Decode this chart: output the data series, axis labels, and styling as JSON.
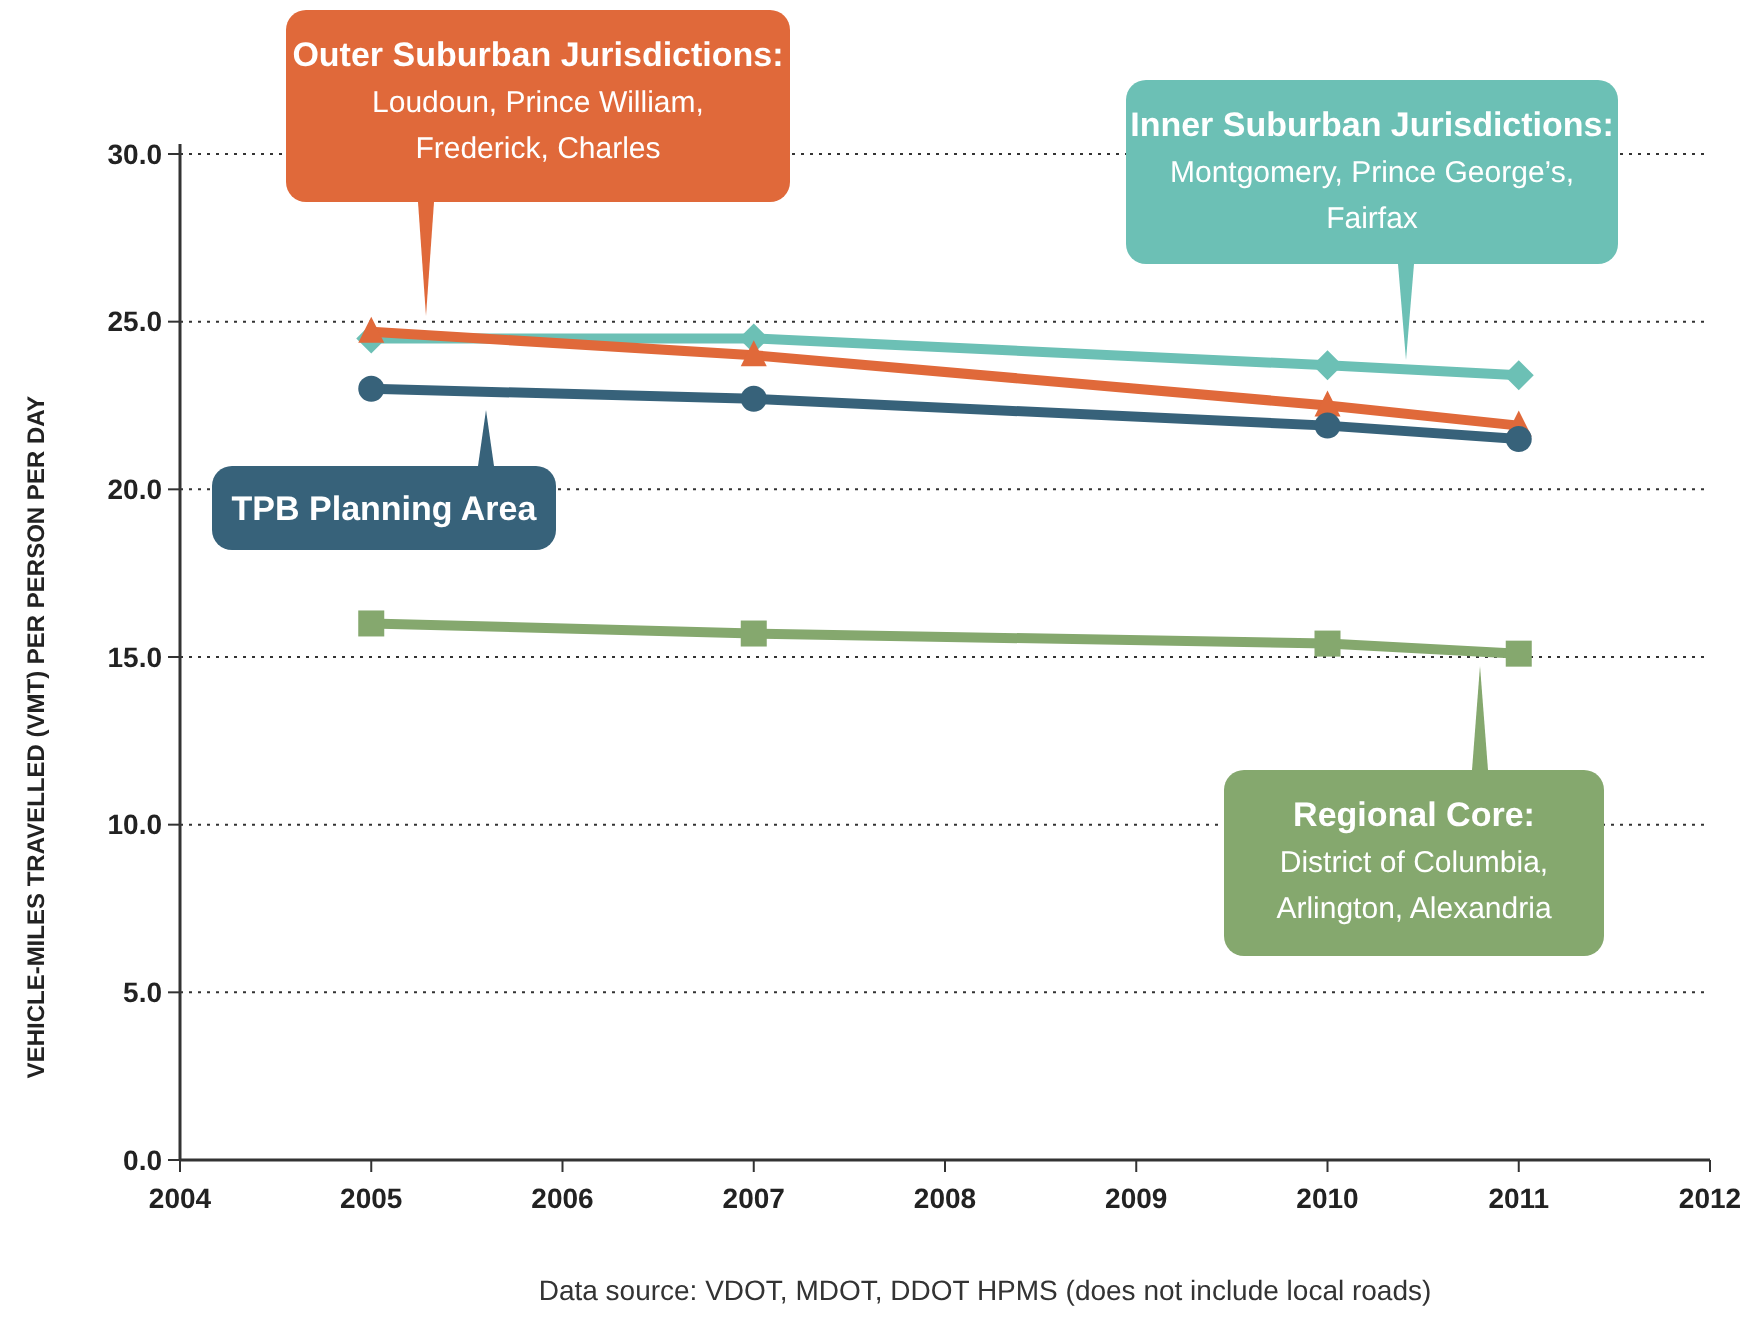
{
  "chart_data": {
    "type": "line",
    "ylabel": "VEHICLE-MILES TRAVELLED (VMT) PER PERSON PER DAY",
    "xlim": [
      2004,
      2012
    ],
    "xticks": [
      2004,
      2005,
      2006,
      2007,
      2008,
      2009,
      2010,
      2011,
      2012
    ],
    "ylim": [
      0,
      30
    ],
    "yticks": [
      {
        "value": 0,
        "label": "0.0"
      },
      {
        "value": 5,
        "label": "5.0"
      },
      {
        "value": 10,
        "label": "10.0"
      },
      {
        "value": 15,
        "label": "15.0"
      },
      {
        "value": 20,
        "label": "20.0"
      },
      {
        "value": 25,
        "label": "25.0"
      },
      {
        "value": 30,
        "label": "30.0"
      }
    ],
    "grid": "y",
    "line_style": "solid",
    "x": [
      2005,
      2007,
      2010,
      2011
    ],
    "series": [
      {
        "name": "Inner Suburban Jurisdictions:\nMontgomery, Prince George’s,\nFairfax",
        "color": "#6cc0b5",
        "marker": "diamond",
        "values": [
          24.5,
          24.5,
          23.7,
          23.4
        ]
      },
      {
        "name": "Outer Suburban Jurisdictions:\nLoudoun, Prince William,\nFrederick, Charles",
        "color": "#e0693a",
        "marker": "triangle",
        "values": [
          24.7,
          24.0,
          22.5,
          21.9
        ]
      },
      {
        "name": "TPB Planning Area",
        "color": "#37627a",
        "marker": "circle",
        "values": [
          23.0,
          22.7,
          21.9,
          21.5
        ]
      },
      {
        "name": "Regional Core:\nDistrict of Columbia,\nArlington, Alexandria",
        "color": "#85a86e",
        "marker": "square",
        "values": [
          16.0,
          15.7,
          15.4,
          15.1
        ]
      }
    ],
    "annotations": [
      "Data source: VDOT, MDOT, DDOT HPMS (does not include local roads)"
    ]
  }
}
